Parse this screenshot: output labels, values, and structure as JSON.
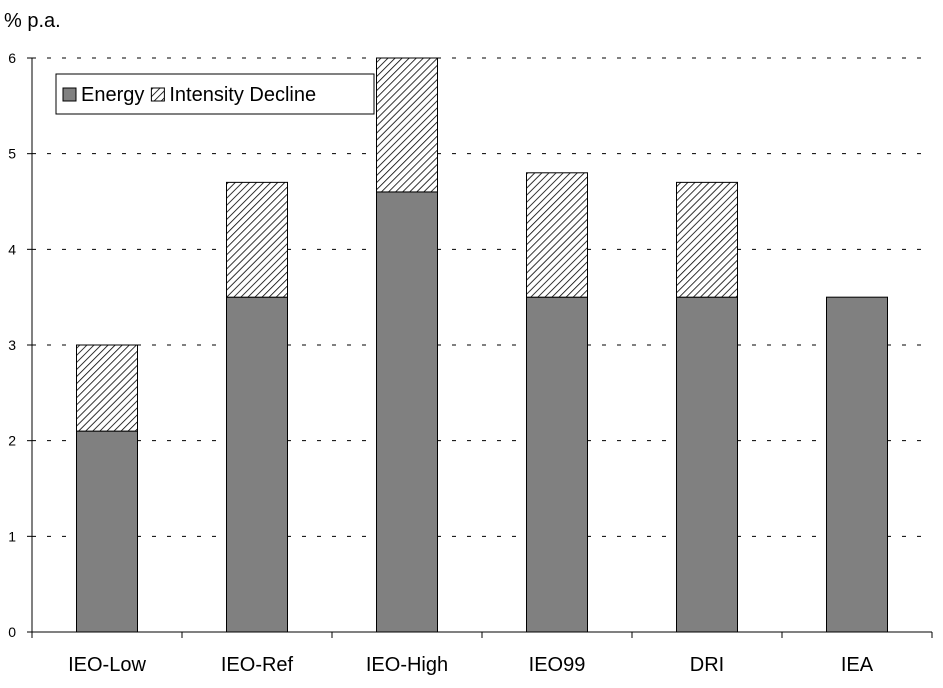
{
  "chart_data": {
    "type": "bar",
    "stacked": true,
    "ylabel": "% p.a.",
    "ylim": [
      0,
      6
    ],
    "yticks": [
      0,
      1,
      2,
      3,
      4,
      5,
      6
    ],
    "categories": [
      "IEO-Low",
      "IEO-Ref",
      "IEO-High",
      "IEO99",
      "DRI",
      "IEA"
    ],
    "series": [
      {
        "name": "Energy",
        "values": [
          2.1,
          3.5,
          4.6,
          3.5,
          3.5,
          3.5
        ],
        "color": "#808080",
        "pattern": "solid"
      },
      {
        "name": "Intensity Decline",
        "values": [
          0.9,
          1.2,
          1.4,
          1.3,
          1.2,
          0
        ],
        "color": "#000000",
        "pattern": "diagonal-hatch"
      }
    ],
    "grid": "horizontal-dashed",
    "legend_position": "top-left"
  }
}
